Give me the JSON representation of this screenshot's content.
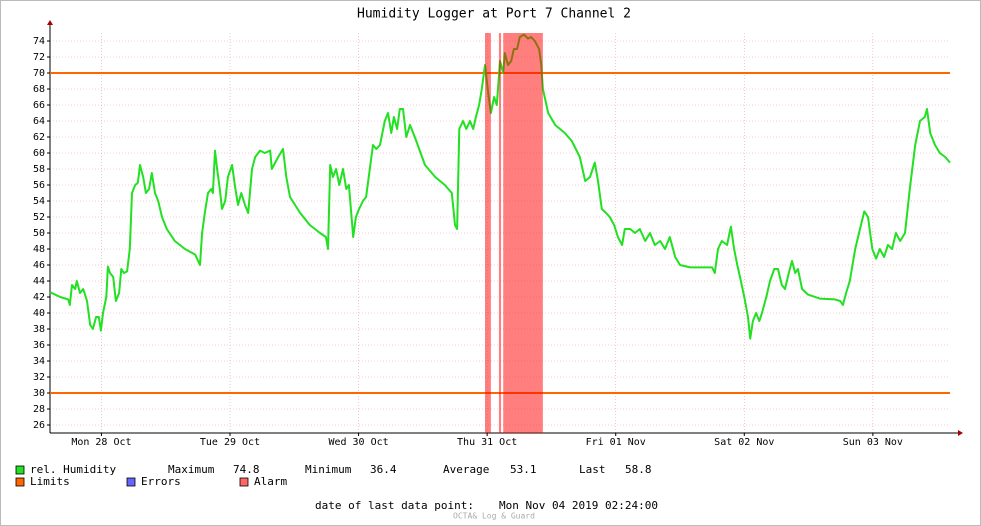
{
  "chart_data": {
    "type": "line",
    "title": "Humidity Logger at Port 7 Channel 2",
    "x": [
      0,
      1.9,
      3.4,
      3.7,
      4.1,
      4.7,
      5.0,
      5.6,
      6.2,
      6.9,
      7.5,
      8.0,
      8.6,
      9.1,
      9.5,
      9.9,
      10.5,
      10.8,
      11.2,
      11.8,
      12.3,
      12.9,
      13.3,
      13.8,
      14.4,
      14.9,
      15.3,
      15.9,
      16.4,
      16.8,
      17.4,
      17.9,
      18.5,
      19.0,
      19.6,
      20.2,
      20.9,
      21.8,
      23.3,
      25.2,
      27.1,
      28.0,
      28.4,
      28.9,
      29.5,
      30.1,
      30.4,
      30.8,
      31.2,
      31.7,
      32.1,
      32.7,
      33.2,
      34.0,
      34.5,
      35.1,
      35.7,
      36.4,
      37.0,
      37.7,
      38.3,
      39.2,
      40.1,
      41.1,
      41.4,
      42.6,
      43.5,
      44.1,
      44.8,
      46.7,
      48.5,
      50.4,
      51.5,
      51.9,
      52.3,
      52.8,
      53.4,
      54.0,
      54.7,
      55.3,
      55.8,
      56.6,
      57.1,
      57.7,
      58.4,
      59.0,
      59.7,
      60.3,
      60.9,
      61.6,
      62.5,
      63.1,
      63.7,
      64.2,
      64.8,
      65.3,
      65.9,
      66.5,
      67.2,
      68.1,
      70.0,
      71.9,
      73.7,
      75.0,
      75.6,
      76.0,
      76.4,
      77.1,
      77.7,
      78.4,
      79.0,
      79.5,
      80.1,
      80.6,
      81.2,
      81.8,
      82.3,
      82.9,
      83.4,
      84.0,
      84.6,
      84.9,
      85.5,
      86.1,
      86.6,
      87.2,
      87.7,
      88.5,
      89.2,
      89.8,
      90.5,
      91.3,
      91.7,
      92.0,
      93.0,
      94.3,
      96.1,
      97.4,
      98.9,
      99.9,
      100.8,
      101.7,
      102.3,
      103.0,
      103.8,
      104.5,
      105.3,
      106.0,
      106.8,
      107.3,
      108.3,
      109.2,
      110.1,
      111.1,
      112.0,
      112.9,
      113.9,
      114.8,
      115.7,
      116.7,
      117.6,
      119.5,
      121.3,
      123.6,
      124.1,
      124.7,
      125.4,
      126.4,
      127.1,
      127.7,
      128.3,
      128.8,
      129.6,
      130.3,
      130.7,
      131.2,
      131.8,
      132.4,
      132.9,
      133.7,
      134.4,
      135.2,
      135.9,
      136.6,
      137.2,
      137.9,
      138.5,
      139.1,
      139.6,
      140.4,
      141.5,
      143.7,
      146.5,
      147.5,
      148.0,
      148.6,
      149.3,
      150.3,
      151.2,
      152.0,
      152.7,
      153.5,
      154.2,
      154.9,
      155.7,
      156.4,
      157.2,
      157.9,
      158.7,
      159.6,
      160.5,
      161.5,
      162.4,
      163.3,
      163.7,
      164.3,
      165.2,
      166.1,
      167.1,
      168.0
    ],
    "series": [
      {
        "name": "rel. Humidity",
        "color": "#22e022",
        "values": [
          42.6,
          42.0,
          41.7,
          41.0,
          43.5,
          43.0,
          44.0,
          42.5,
          43.0,
          41.5,
          38.5,
          38.0,
          39.5,
          39.5,
          37.8,
          40.0,
          42.0,
          45.8,
          45.0,
          44.5,
          41.5,
          42.5,
          45.5,
          45.0,
          45.2,
          48.0,
          55.0,
          56.0,
          56.3,
          58.5,
          57.0,
          55.0,
          55.5,
          57.5,
          55.0,
          54.0,
          52.0,
          50.5,
          49.0,
          48.0,
          47.3,
          46.0,
          50.0,
          52.5,
          55.0,
          55.5,
          55.0,
          60.3,
          58.0,
          55.5,
          53.0,
          54.0,
          57.0,
          58.5,
          56.0,
          53.5,
          55.0,
          53.5,
          52.5,
          58.0,
          59.5,
          60.3,
          60.0,
          60.3,
          58.0,
          59.5,
          60.5,
          57.0,
          54.5,
          52.5,
          51.0,
          50.0,
          49.5,
          48.0,
          58.5,
          57.0,
          58.0,
          56.0,
          58.0,
          55.5,
          56.0,
          49.5,
          52.0,
          53.0,
          54.0,
          54.5,
          58.0,
          61.0,
          60.5,
          61.0,
          64.0,
          65.0,
          62.5,
          64.5,
          63.0,
          65.5,
          65.5,
          62.0,
          63.5,
          62.0,
          58.5,
          57.0,
          56.0,
          55.0,
          51.0,
          50.5,
          63.0,
          64.0,
          63.0,
          64.0,
          63.0,
          64.5,
          66.0,
          68.0,
          71.0,
          67.5,
          65.0,
          67.0,
          66.0,
          71.5,
          70.0,
          72.5,
          71.0,
          71.5,
          73.0,
          73.0,
          74.5,
          74.8,
          74.3,
          74.5,
          74.0,
          73.0,
          71.0,
          68.0,
          65.0,
          63.5,
          62.5,
          61.5,
          59.5,
          56.5,
          57.0,
          58.8,
          56.5,
          53.0,
          52.5,
          52.0,
          51.0,
          49.5,
          48.5,
          50.5,
          50.5,
          50.0,
          50.5,
          49.0,
          50.0,
          48.5,
          49.0,
          48.0,
          49.5,
          47.0,
          46.0,
          45.7,
          45.7,
          45.7,
          45.0,
          48.0,
          49.0,
          48.5,
          50.8,
          48.0,
          46.0,
          44.5,
          42.0,
          39.5,
          36.8,
          39.0,
          40.0,
          39.0,
          40.0,
          42.0,
          44.0,
          45.5,
          45.5,
          43.5,
          43.0,
          45.0,
          46.5,
          45.0,
          45.5,
          43.0,
          42.3,
          41.8,
          41.7,
          41.5,
          41.0,
          42.5,
          44.0,
          48.0,
          50.5,
          52.7,
          52.0,
          48.0,
          46.8,
          48.0,
          47.0,
          48.5,
          48.0,
          50.0,
          49.0,
          50.0,
          55.5,
          61.0,
          64.0,
          64.5,
          65.5,
          62.5,
          61.0,
          60.0,
          59.5,
          58.8
        ]
      }
    ],
    "xlim": [
      0,
      168
    ],
    "xticks": [
      {
        "value": 9.6,
        "label": "Mon 28 Oct"
      },
      {
        "value": 33.6,
        "label": "Tue 29 Oct"
      },
      {
        "value": 57.6,
        "label": "Wed 30 Oct"
      },
      {
        "value": 81.6,
        "label": "Thu 31 Oct"
      },
      {
        "value": 105.6,
        "label": "Fri 01 Nov"
      },
      {
        "value": 129.6,
        "label": "Sat 02 Nov"
      },
      {
        "value": 153.6,
        "label": "Sun 03 Nov"
      }
    ],
    "ylim": [
      25,
      75
    ],
    "yticks": [
      26,
      28,
      30,
      32,
      34,
      36,
      38,
      40,
      42,
      44,
      46,
      48,
      50,
      52,
      54,
      56,
      58,
      60,
      62,
      64,
      66,
      68,
      70,
      72,
      74
    ],
    "grid": true,
    "limits": {
      "name": "Limits",
      "color": "#ff6600",
      "values": [
        30,
        70
      ]
    },
    "errors": {
      "name": "Errors",
      "color": "#6666ff"
    },
    "alarms": {
      "name": "Alarm",
      "color": "#ff0000",
      "legend_color": "#ff6666",
      "ranges": [
        [
          81.2,
          82.3
        ],
        [
          83.8,
          84.2
        ],
        [
          84.6,
          92.0
        ]
      ]
    },
    "stats": [
      {
        "label": "Maximum",
        "value": 74.8
      },
      {
        "label": "Minimum",
        "value": 36.4
      },
      {
        "label": "Average",
        "value": 53.1
      },
      {
        "label": "Last",
        "value": 58.8
      }
    ],
    "footer": {
      "label": "date of last data point:",
      "value": "Mon Nov 04 2019 02:24:00"
    },
    "watermark": "OCTA& Log & Guard"
  }
}
